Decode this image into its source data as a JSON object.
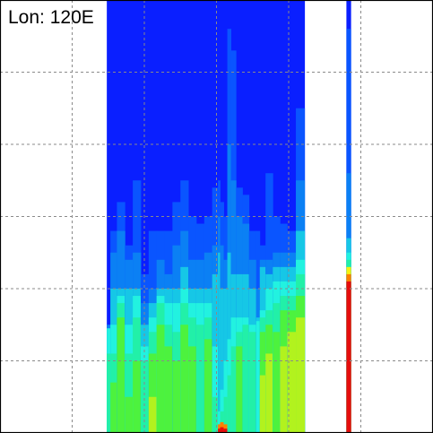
{
  "chart_data": {
    "type": "heatmap",
    "title": "Lon: 120E",
    "xlabel": "",
    "ylabel": "",
    "grid": true,
    "xlim": [
      0,
      6
    ],
    "ylim": [
      0,
      6
    ],
    "background_color": "#0a1fff",
    "missing_color": "#ffffff",
    "missing_ranges_x": [
      [
        0,
        1.48
      ],
      [
        4.22,
        4.8
      ],
      [
        4.86,
        6
      ]
    ],
    "data_ranges_x": [
      [
        1.48,
        4.22
      ],
      [
        4.8,
        4.86
      ]
    ],
    "color_levels": [
      {
        "level": 1,
        "color": "#0a1fff"
      },
      {
        "level": 2,
        "color": "#0a55ff"
      },
      {
        "level": 3,
        "color": "#0b80f4"
      },
      {
        "level": 4,
        "color": "#16c7e6"
      },
      {
        "level": 5,
        "color": "#22f2e0"
      },
      {
        "level": 6,
        "color": "#22f0a8"
      },
      {
        "level": 7,
        "color": "#4df23e"
      },
      {
        "level": 8,
        "color": "#b2f21e"
      },
      {
        "level": 9,
        "color": "#f5f211"
      },
      {
        "level": 10,
        "color": "#ff8000"
      },
      {
        "level": 11,
        "color": "#e60d0d"
      }
    ],
    "columns": [
      {
        "x0": 1.48,
        "x1": 1.53,
        "tops": {
          "3": 1.5,
          "4": 1.45,
          "5": 1.45,
          "6": 1.1
        }
      },
      {
        "x0": 1.53,
        "x1": 1.62,
        "tops": {
          "2": 2.8,
          "3": 2.5,
          "4": 2.0,
          "5": 1.5,
          "6": 1.1,
          "7": 0.7
        }
      },
      {
        "x0": 1.62,
        "x1": 1.73,
        "tops": {
          "2": 3.2,
          "3": 2.8,
          "4": 2.0,
          "5": 1.9,
          "6": 1.8,
          "7": 1.6
        }
      },
      {
        "x0": 1.73,
        "x1": 1.84,
        "tops": {
          "2": 2.6,
          "3": 2.4,
          "4": 2.0,
          "5": 1.5,
          "6": 1.1,
          "7": 0.5
        }
      },
      {
        "x0": 1.84,
        "x1": 1.95,
        "tops": {
          "2": 3.5,
          "3": 2.5,
          "4": 2.0,
          "5": 1.9,
          "6": 1.6,
          "7": 1.0
        }
      },
      {
        "x0": 1.95,
        "x1": 2.06,
        "tops": {
          "2": 2.2,
          "3": 1.8,
          "4": 1.5,
          "5": 1.2,
          "6": 1.0
        }
      },
      {
        "x0": 2.06,
        "x1": 2.17,
        "tops": {
          "2": 2.8,
          "3": 2.0,
          "4": 1.8,
          "5": 1.6,
          "6": 1.4,
          "7": 1.1,
          "8": 0.5
        }
      },
      {
        "x0": 2.17,
        "x1": 2.28,
        "tops": {
          "2": 2.8,
          "3": 2.4,
          "4": 2.0,
          "5": 1.9,
          "6": 1.8,
          "7": 1.5
        }
      },
      {
        "x0": 2.28,
        "x1": 2.39,
        "tops": {
          "2": 2.8,
          "3": 2.2,
          "4": 2.0,
          "5": 1.8,
          "6": 1.5,
          "7": 1.2
        }
      },
      {
        "x0": 2.39,
        "x1": 2.5,
        "tops": {
          "2": 3.2,
          "3": 2.6,
          "4": 2.0,
          "5": 1.8,
          "6": 1.4,
          "7": 1.0
        }
      },
      {
        "x0": 2.5,
        "x1": 2.61,
        "tops": {
          "2": 3.5,
          "3": 2.8,
          "4": 2.3,
          "5": 2.0,
          "6": 1.8,
          "7": 1.5
        }
      },
      {
        "x0": 2.61,
        "x1": 2.72,
        "tops": {
          "2": 3.0,
          "3": 2.4,
          "4": 2.0,
          "5": 1.8,
          "6": 1.6,
          "7": 1.2
        }
      },
      {
        "x0": 2.72,
        "x1": 2.83,
        "tops": {
          "2": 2.9,
          "3": 2.4,
          "4": 2.0,
          "5": 1.8,
          "6": 1.5
        }
      },
      {
        "x0": 2.83,
        "x1": 2.94,
        "tops": {
          "2": 3.0,
          "3": 2.5,
          "4": 2.0,
          "5": 1.8,
          "6": 1.6,
          "7": 1.3
        }
      },
      {
        "x0": 2.94,
        "x1": 3.02,
        "tops": {
          "2": 3.4,
          "3": 2.6,
          "4": 2.2,
          "5": 1.2,
          "6": 0.5
        }
      },
      {
        "x0": 3.02,
        "x1": 3.05,
        "tops": {
          "2": 3.5,
          "3": 3.0,
          "4": 2.5,
          "5": 0.3,
          "10": 0.12,
          "11": 0.06
        }
      },
      {
        "x0": 3.05,
        "x1": 3.1,
        "tops": {
          "2": 3.2,
          "3": 2.6,
          "4": 2.0,
          "5": 0.6,
          "6": 0.3,
          "10": 0.15,
          "11": 0.08
        }
      },
      {
        "x0": 3.1,
        "x1": 3.15,
        "tops": {
          "2": 3.0,
          "3": 2.4,
          "4": 2.0,
          "5": 1.0,
          "6": 0.5,
          "10": 0.12,
          "11": 0.06
        }
      },
      {
        "x0": 3.15,
        "x1": 3.2,
        "tops": {
          "2": 5.6,
          "3": 4.0,
          "4": 2.5,
          "5": 1.3,
          "6": 0.8
        }
      },
      {
        "x0": 3.2,
        "x1": 3.27,
        "tops": {
          "2": 5.3,
          "3": 3.5,
          "4": 2.2,
          "5": 1.6,
          "6": 1.2
        }
      },
      {
        "x0": 3.27,
        "x1": 3.36,
        "tops": {
          "2": 3.4,
          "3": 3.0,
          "4": 2.2,
          "5": 1.6,
          "6": 1.4,
          "7": 1.2
        }
      },
      {
        "x0": 3.36,
        "x1": 3.45,
        "tops": {
          "2": 3.3,
          "3": 2.9,
          "4": 2.2,
          "5": 1.6,
          "6": 1.5
        }
      },
      {
        "x0": 3.45,
        "x1": 3.55,
        "tops": {
          "2": 2.8,
          "3": 2.4,
          "4": 2.0,
          "5": 1.5,
          "6": 1.4
        }
      },
      {
        "x0": 3.55,
        "x1": 3.6,
        "tops": {
          "2": 2.8,
          "3": 2.0,
          "4": 1.6,
          "5": 1.55
        }
      },
      {
        "x0": 3.6,
        "x1": 3.68,
        "tops": {
          "2": 2.6,
          "3": 2.4,
          "4": 2.3,
          "5": 1.7,
          "6": 1.6,
          "7": 1.4,
          "8": 0.8
        }
      },
      {
        "x0": 3.68,
        "x1": 3.78,
        "tops": {
          "2": 3.6,
          "3": 2.4,
          "4": 2.2,
          "5": 2.0,
          "6": 1.7,
          "7": 1.5,
          "8": 1.1
        }
      },
      {
        "x0": 3.78,
        "x1": 3.88,
        "tops": {
          "2": 3.0,
          "3": 2.5,
          "4": 2.3,
          "5": 2.1,
          "6": 1.8,
          "7": 1.4
        }
      },
      {
        "x0": 3.88,
        "x1": 3.98,
        "tops": {
          "2": 2.9,
          "3": 2.5,
          "4": 2.3,
          "5": 2.1,
          "6": 1.9,
          "7": 1.7,
          "8": 1.2
        }
      },
      {
        "x0": 3.98,
        "x1": 4.1,
        "tops": {
          "2": 2.8,
          "3": 2.5,
          "4": 2.3,
          "5": 2.1,
          "6": 1.9,
          "7": 1.7,
          "8": 1.4
        }
      },
      {
        "x0": 4.1,
        "x1": 4.22,
        "tops": {
          "2": 4.5,
          "3": 3.5,
          "4": 2.8,
          "5": 2.4,
          "6": 2.2,
          "7": 1.9,
          "8": 1.6
        }
      },
      {
        "x0": 4.8,
        "x1": 4.86,
        "tops": {
          "2": 5.6,
          "3": 3.6,
          "4": 2.7,
          "5": 2.5,
          "6": 2.4,
          "9": 2.3,
          "10": 2.2,
          "11": 2.1
        }
      }
    ]
  }
}
